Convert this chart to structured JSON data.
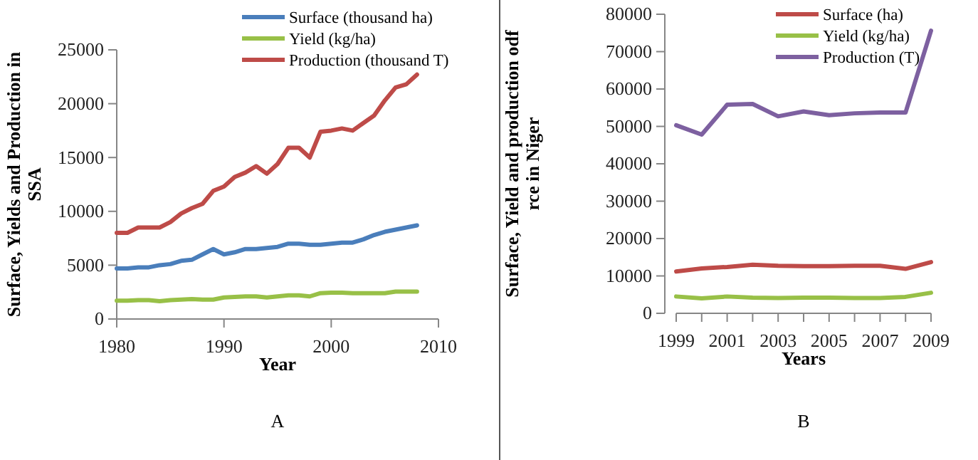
{
  "chart_data": [
    {
      "type": "line",
      "xlabel": "Year",
      "ylabel": "Surface, Yields and Production in SSA",
      "x": [
        1980,
        1981,
        1982,
        1983,
        1984,
        1985,
        1986,
        1987,
        1988,
        1989,
        1990,
        1991,
        1992,
        1993,
        1994,
        1995,
        1996,
        1997,
        1998,
        1999,
        2000,
        2001,
        2002,
        2003,
        2004,
        2005,
        2006,
        2007,
        2008
      ],
      "xlim": [
        1980,
        2010
      ],
      "xticks": [
        1980,
        1990,
        2000,
        2010
      ],
      "ylim": [
        0,
        25000
      ],
      "yticks": [
        0,
        5000,
        10000,
        15000,
        20000,
        25000
      ],
      "legend": "top",
      "annotations": [
        "A"
      ],
      "series": [
        {
          "name": "Surface (thousand ha)",
          "color": "#4a7ebb",
          "values": [
            4700,
            4700,
            4800,
            4800,
            5000,
            5100,
            5400,
            5500,
            6000,
            6500,
            6000,
            6200,
            6500,
            6500,
            6600,
            6700,
            7000,
            7000,
            6900,
            6900,
            7000,
            7100,
            7100,
            7400,
            7800,
            8100,
            8300,
            8500,
            8700
          ]
        },
        {
          "name": "Yield (kg/ha)",
          "color": "#98c047",
          "values": [
            1700,
            1700,
            1750,
            1750,
            1650,
            1750,
            1800,
            1850,
            1800,
            1800,
            2000,
            2050,
            2100,
            2100,
            2000,
            2100,
            2200,
            2200,
            2100,
            2400,
            2450,
            2450,
            2400,
            2400,
            2400,
            2400,
            2550,
            2550,
            2550
          ]
        },
        {
          "name": "Production (thousand T)",
          "color": "#be4b48",
          "values": [
            8000,
            8000,
            8500,
            8500,
            8500,
            9000,
            9800,
            10300,
            10700,
            11900,
            12300,
            13200,
            13600,
            14200,
            13500,
            14400,
            15900,
            15900,
            15000,
            17400,
            17500,
            17700,
            17500,
            18200,
            18900,
            20300,
            21500,
            21800,
            22700
          ]
        }
      ]
    },
    {
      "type": "line",
      "xlabel": "Years",
      "ylabel": "Surface, Yield and production odf rce in Niger",
      "categories": [
        "1999",
        null,
        "2001",
        null,
        "2003",
        null,
        "2005",
        null,
        "2007",
        null,
        "2009"
      ],
      "ylim": [
        0,
        80000
      ],
      "yticks": [
        0,
        10000,
        20000,
        30000,
        40000,
        50000,
        60000,
        70000,
        80000
      ],
      "legend": "top",
      "annotations": [
        "B"
      ],
      "series": [
        {
          "name": "Surface (ha)",
          "color": "#be4b48",
          "values": [
            11200,
            12000,
            12400,
            13000,
            12700,
            12600,
            12600,
            12700,
            12700,
            11900,
            13700
          ]
        },
        {
          "name": "Yield (kg/ha)",
          "color": "#98c047",
          "values": [
            4500,
            4000,
            4500,
            4200,
            4100,
            4200,
            4200,
            4100,
            4100,
            4400,
            5500
          ]
        },
        {
          "name": "Production (T)",
          "color": "#7d60a0",
          "values": [
            50300,
            47800,
            55800,
            56000,
            52700,
            54000,
            53000,
            53500,
            53700,
            53700,
            75600
          ]
        }
      ]
    }
  ]
}
